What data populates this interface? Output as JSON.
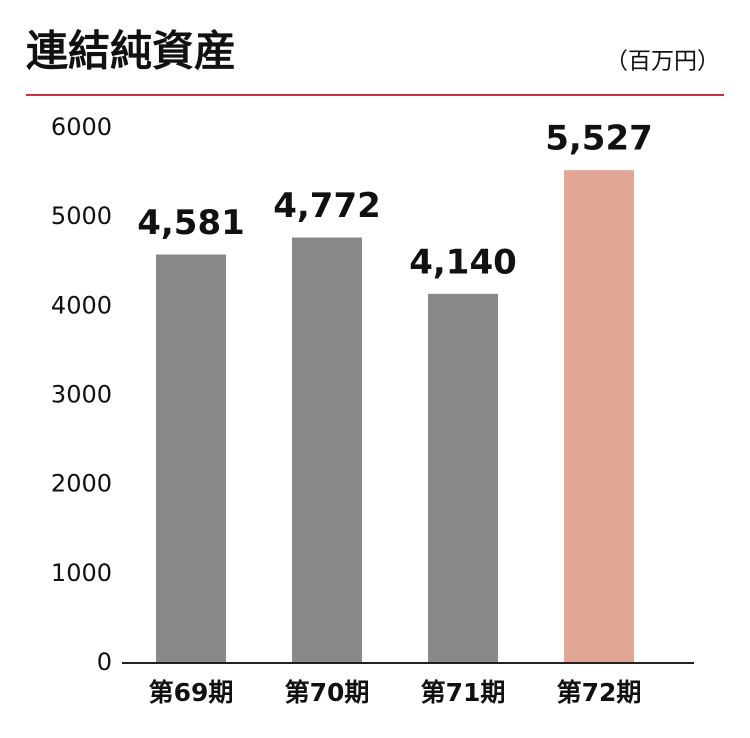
{
  "chart_data": {
    "type": "bar",
    "title": "連結純資産",
    "unit_label": "（百万円）",
    "categories": [
      "第69期",
      "第70期",
      "第71期",
      "第72期"
    ],
    "values": [
      4581,
      4772,
      4140,
      5527
    ],
    "value_labels": [
      "4,581",
      "4,772",
      "4,140",
      "5,527"
    ],
    "colors": [
      "#898989",
      "#898989",
      "#898989",
      "#e2a696"
    ],
    "ylim": [
      0,
      6000
    ],
    "yticks": [
      0,
      1000,
      2000,
      3000,
      4000,
      5000,
      6000
    ],
    "grid": false
  }
}
